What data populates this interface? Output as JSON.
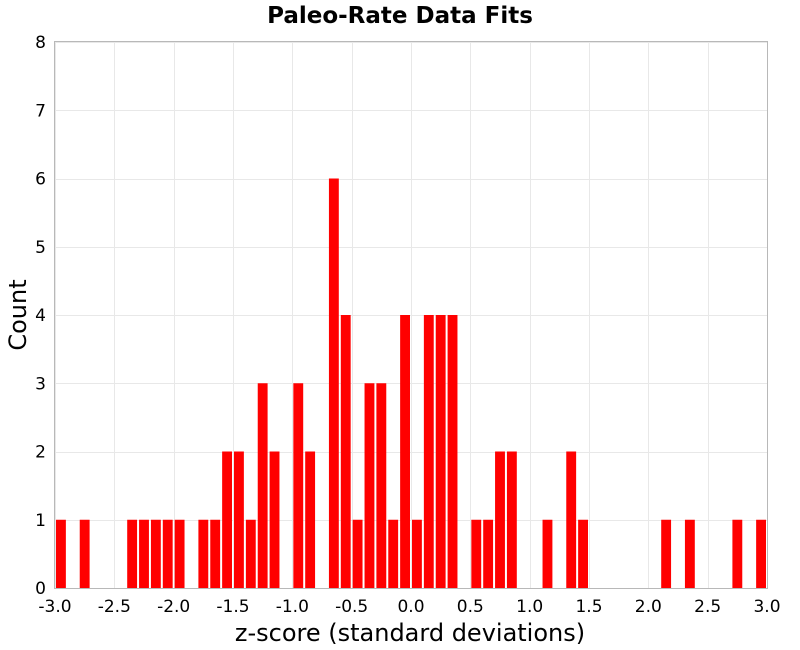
{
  "chart_data": {
    "type": "bar",
    "title": "Paleo-Rate Data Fits",
    "xlabel": "z-score (standard deviations)",
    "ylabel": "Count",
    "xlim": [
      -3.0,
      3.0
    ],
    "ylim": [
      0,
      8
    ],
    "bin_width": 0.1,
    "x_ticks": [
      "-3.0",
      "-2.5",
      "-2.0",
      "-1.5",
      "-1.0",
      "-0.5",
      "0.0",
      "0.5",
      "1.0",
      "1.5",
      "2.0",
      "2.5",
      "3.0"
    ],
    "y_ticks": [
      "0",
      "1",
      "2",
      "3",
      "4",
      "5",
      "6",
      "7",
      "8"
    ],
    "grid": true,
    "bar_color": "#ff0000",
    "bins": [
      {
        "x": -2.95,
        "count": 1
      },
      {
        "x": -2.75,
        "count": 1
      },
      {
        "x": -2.35,
        "count": 1
      },
      {
        "x": -2.25,
        "count": 1
      },
      {
        "x": -2.15,
        "count": 1
      },
      {
        "x": -2.05,
        "count": 1
      },
      {
        "x": -1.95,
        "count": 1
      },
      {
        "x": -1.75,
        "count": 1
      },
      {
        "x": -1.65,
        "count": 1
      },
      {
        "x": -1.55,
        "count": 2
      },
      {
        "x": -1.45,
        "count": 2
      },
      {
        "x": -1.35,
        "count": 1
      },
      {
        "x": -1.25,
        "count": 3
      },
      {
        "x": -1.15,
        "count": 2
      },
      {
        "x": -0.95,
        "count": 3
      },
      {
        "x": -0.85,
        "count": 2
      },
      {
        "x": -0.65,
        "count": 6
      },
      {
        "x": -0.55,
        "count": 4
      },
      {
        "x": -0.45,
        "count": 1
      },
      {
        "x": -0.35,
        "count": 3
      },
      {
        "x": -0.25,
        "count": 3
      },
      {
        "x": -0.15,
        "count": 1
      },
      {
        "x": -0.05,
        "count": 4
      },
      {
        "x": 0.05,
        "count": 1
      },
      {
        "x": 0.15,
        "count": 4
      },
      {
        "x": 0.25,
        "count": 4
      },
      {
        "x": 0.35,
        "count": 4
      },
      {
        "x": 0.55,
        "count": 1
      },
      {
        "x": 0.65,
        "count": 1
      },
      {
        "x": 0.75,
        "count": 2
      },
      {
        "x": 0.85,
        "count": 2
      },
      {
        "x": 1.15,
        "count": 1
      },
      {
        "x": 1.35,
        "count": 2
      },
      {
        "x": 1.45,
        "count": 1
      },
      {
        "x": 2.15,
        "count": 1
      },
      {
        "x": 2.35,
        "count": 1
      },
      {
        "x": 2.75,
        "count": 1
      },
      {
        "x": 2.95,
        "count": 1
      }
    ]
  }
}
